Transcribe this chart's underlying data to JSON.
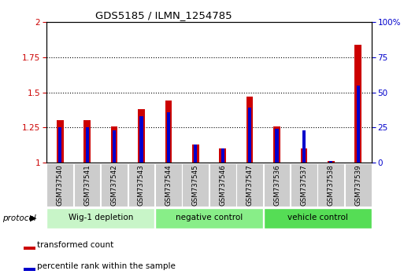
{
  "title": "GDS5185 / ILMN_1254785",
  "samples": [
    "GSM737540",
    "GSM737541",
    "GSM737542",
    "GSM737543",
    "GSM737544",
    "GSM737545",
    "GSM737546",
    "GSM737547",
    "GSM737536",
    "GSM737537",
    "GSM737538",
    "GSM737539"
  ],
  "red_values": [
    1.3,
    1.3,
    1.26,
    1.38,
    1.44,
    1.13,
    1.1,
    1.47,
    1.26,
    1.1,
    1.01,
    1.84
  ],
  "blue_values_pct": [
    25,
    25,
    23,
    33,
    36,
    13,
    10,
    39,
    24,
    23,
    1,
    55
  ],
  "groups": [
    {
      "label": "Wig-1 depletion",
      "start": 0,
      "end": 4,
      "color": "#c8f5c8"
    },
    {
      "label": "negative control",
      "start": 4,
      "end": 8,
      "color": "#88ee88"
    },
    {
      "label": "vehicle control",
      "start": 8,
      "end": 12,
      "color": "#55dd55"
    }
  ],
  "ylim_left": [
    1.0,
    2.0
  ],
  "ylim_right": [
    0,
    100
  ],
  "yticks_left": [
    1.0,
    1.25,
    1.5,
    1.75,
    2.0
  ],
  "yticks_right": [
    0,
    25,
    50,
    75,
    100
  ],
  "left_tick_color": "#cc0000",
  "right_tick_color": "#0000cc",
  "red_color": "#cc0000",
  "blue_color": "#0000cc",
  "red_bar_width": 0.25,
  "blue_bar_width": 0.12,
  "protocol_label": "protocol",
  "legend_red": "transformed count",
  "legend_blue": "percentile rank within the sample",
  "grid_lines": [
    1.25,
    1.5,
    1.75
  ],
  "ticklabel_bg": "#cccccc",
  "fig_width": 5.13,
  "fig_height": 3.54,
  "dpi": 100
}
